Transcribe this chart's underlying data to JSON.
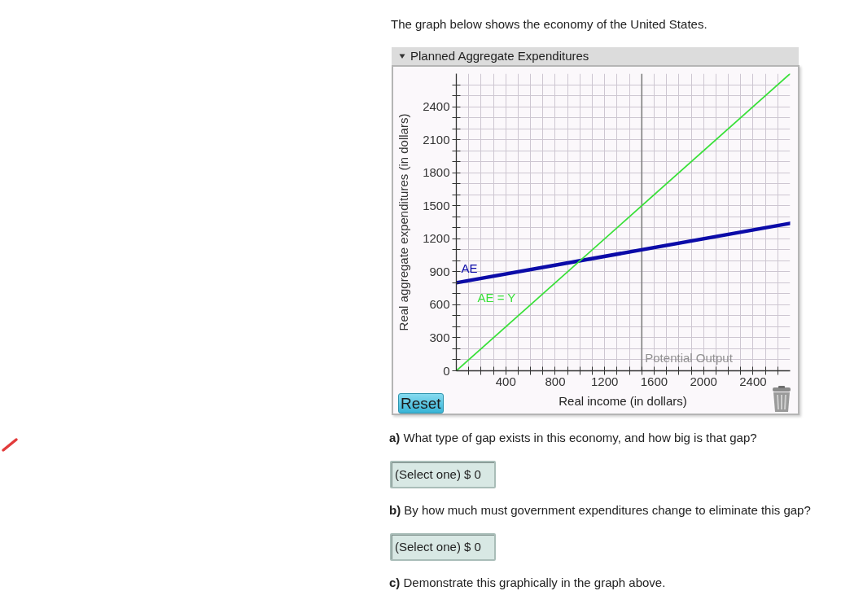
{
  "chart_data": {
    "type": "line",
    "title": "Planned Aggregate Expenditures",
    "xlabel": "Real income (in dollars)",
    "ylabel": "Real aggregate expenditures (in dollars)",
    "annotations": [
      "The graph below shows the economy of the United States.",
      "Reset",
      "a) What type of gap exists in this economy, and how big is that gap?",
      "(Select one) $ 0",
      "b) By how much must government expenditures change to eliminate this gap?",
      "(Select one) $ 0",
      "c) Demonstrate this graphically in the graph above."
    ],
    "x": [
      0,
      2700
    ],
    "series": [
      {
        "name": "AE",
        "color": "#0b0ba8",
        "values": [
          800,
          1340
        ]
      },
      {
        "name": "AE = Y",
        "color": "#3ae03a",
        "values": [
          0,
          2700
        ]
      }
    ],
    "xlim": [
      0,
      2700
    ],
    "ylim": [
      0,
      2700
    ],
    "xticks": [
      {
        "value": 100,
        "label": null
      },
      {
        "value": 200,
        "label": null
      },
      {
        "value": 300,
        "label": null
      },
      400,
      {
        "value": 500,
        "label": null
      },
      {
        "value": 600,
        "label": null
      },
      {
        "value": 700,
        "label": null
      },
      800,
      {
        "value": 900,
        "label": null
      },
      {
        "value": 1000,
        "label": null
      },
      {
        "value": 1100,
        "label": null
      },
      1200,
      {
        "value": 1300,
        "label": null
      },
      {
        "value": 1400,
        "label": null
      },
      {
        "value": 1500,
        "label": null
      },
      1600,
      {
        "value": 1700,
        "label": null
      },
      {
        "value": 1800,
        "label": null
      },
      {
        "value": 1900,
        "label": null
      },
      2000,
      {
        "value": 2100,
        "label": null
      },
      {
        "value": 2200,
        "label": null
      },
      {
        "value": 2300,
        "label": null
      },
      2400,
      {
        "value": 2500,
        "label": null
      },
      {
        "value": 2600,
        "label": null
      }
    ],
    "yticks": [
      0,
      {
        "value": 100,
        "label": null
      },
      {
        "value": 200,
        "label": null
      },
      300,
      {
        "value": 400,
        "label": null
      },
      {
        "value": 500,
        "label": null
      },
      600,
      {
        "value": 700,
        "label": null
      },
      {
        "value": 800,
        "label": null
      },
      900,
      {
        "value": 1000,
        "label": null
      },
      {
        "value": 1100,
        "label": null
      },
      1200,
      {
        "value": 1300,
        "label": null
      },
      {
        "value": 1400,
        "label": null
      },
      1500,
      {
        "value": 1600,
        "label": null
      },
      {
        "value": 1700,
        "label": null
      },
      1800,
      {
        "value": 1900,
        "label": null
      },
      {
        "value": 2000,
        "label": null
      },
      2100,
      {
        "value": 2200,
        "label": null
      },
      {
        "value": 2300,
        "label": null
      },
      2400,
      {
        "value": 2500,
        "label": null
      },
      {
        "value": 2600,
        "label": null
      }
    ],
    "grid": true,
    "ref_lines": [
      {
        "axis": "x",
        "value": 1500,
        "label": "Potential Output",
        "color": "#7f7f7f"
      }
    ]
  }
}
